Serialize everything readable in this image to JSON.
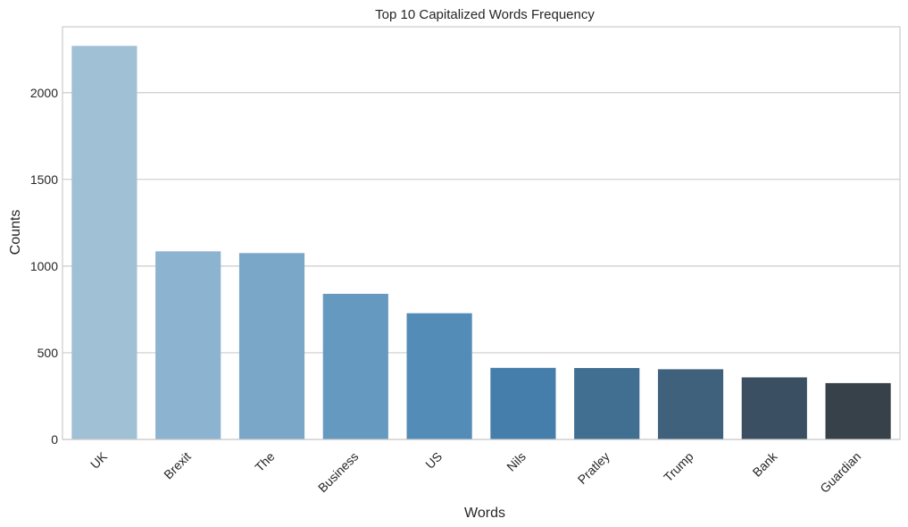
{
  "chart_data": {
    "type": "bar",
    "title": "Top 10 Capitalized Words Frequency",
    "xlabel": "Words",
    "ylabel": "Counts",
    "categories": [
      "UK",
      "Brexit",
      "The",
      "Business",
      "US",
      "Nils",
      "Pratley",
      "Trump",
      "Bank",
      "Guardian"
    ],
    "values": [
      2270,
      1085,
      1075,
      840,
      728,
      413,
      412,
      405,
      358,
      325
    ],
    "ylim": [
      0,
      2380
    ],
    "yticks": [
      0,
      500,
      1000,
      1500,
      2000
    ],
    "grid": true,
    "bar_colors": [
      "#a0c0d6",
      "#8cb3cf",
      "#7aa7c8",
      "#6699c0",
      "#548cb8",
      "#467eab",
      "#406f91",
      "#3f617c",
      "#3b4f62",
      "#364149"
    ],
    "grid_color": "#cccccc",
    "frame_color": "#cccccc"
  }
}
